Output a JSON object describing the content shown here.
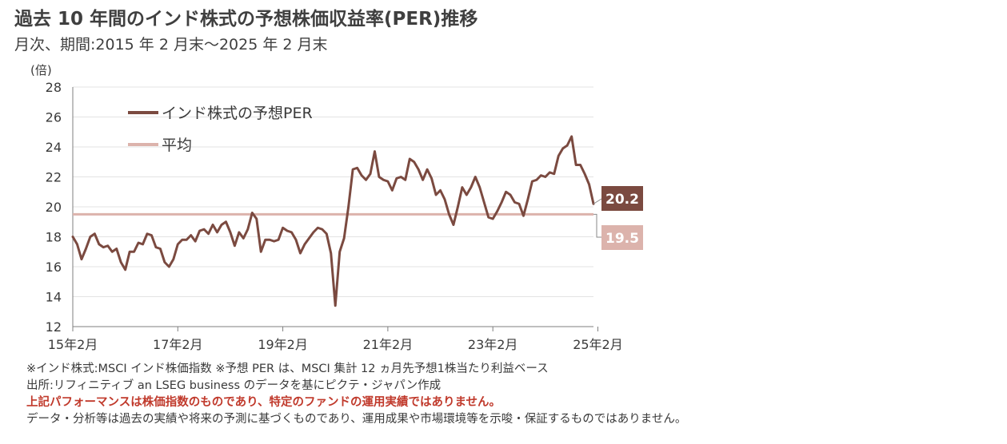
{
  "title": "過去 10 年間のインド株式の予想株価収益率(PER)推移",
  "subtitle": "月次、期間:2015 年 2 月末～2025 年 2 月末",
  "notes": [
    "※インド株式:MSCI インド株価指数 ※予想 PER は、MSCI 集計 12 ヵ月先予想1株当たり利益ベース",
    "出所:リフィニティブ an LSEG business のデータを基にピクテ・ジャパン作成",
    "上記パフォーマンスは株価指数のものであり、特定のファンドの運用実績ではありません。",
    "データ・分析等は過去の実績や将来の予測に基づくものであり、運用成果や市場環境等を示唆・保証するものではありません。"
  ],
  "chart_data": {
    "type": "line",
    "ylabel": "(倍)",
    "ylim": [
      12,
      28
    ],
    "yticks": [
      12,
      14,
      16,
      18,
      20,
      22,
      24,
      26,
      28
    ],
    "xticks": [
      "15年2月",
      "17年2月",
      "19年2月",
      "21年2月",
      "23年2月",
      "25年2月"
    ],
    "x_range": [
      "2015-02",
      "2025-02"
    ],
    "grid": true,
    "legend_placement": "top-left",
    "series": [
      {
        "name": "インド株式の予想PER",
        "color": "#7b4a40",
        "end_label": "20.2",
        "values": [
          18.0,
          17.5,
          16.5,
          17.2,
          18.0,
          18.2,
          17.5,
          17.3,
          17.4,
          17.0,
          17.2,
          16.3,
          15.8,
          17.0,
          17.0,
          17.6,
          17.5,
          18.2,
          18.1,
          17.3,
          17.2,
          16.3,
          16.0,
          16.5,
          17.5,
          17.8,
          17.8,
          18.1,
          17.7,
          18.4,
          18.5,
          18.2,
          18.8,
          18.3,
          18.8,
          19.0,
          18.3,
          17.4,
          18.3,
          17.9,
          18.5,
          19.6,
          19.2,
          17.0,
          17.8,
          17.8,
          17.7,
          17.8,
          18.6,
          18.4,
          18.3,
          17.8,
          16.9,
          17.5,
          17.9,
          18.3,
          18.6,
          18.5,
          18.2,
          16.9,
          13.4,
          17.0,
          17.9,
          20.0,
          22.5,
          22.6,
          22.1,
          21.8,
          22.2,
          23.7,
          22.0,
          21.8,
          21.7,
          21.1,
          21.9,
          22.0,
          21.8,
          23.2,
          23.0,
          22.5,
          21.8,
          22.5,
          21.9,
          20.8,
          21.1,
          20.5,
          19.5,
          18.8,
          20.0,
          21.3,
          20.8,
          21.3,
          22.0,
          21.3,
          20.3,
          19.3,
          19.2,
          19.7,
          20.3,
          21.0,
          20.8,
          20.3,
          20.2,
          19.4,
          20.5,
          21.7,
          21.8,
          22.1,
          22.0,
          22.3,
          22.2,
          23.4,
          23.9,
          24.1,
          24.7,
          22.8,
          22.8,
          22.2,
          21.5,
          20.2
        ]
      },
      {
        "name": "平均",
        "color": "#dcb3ac",
        "end_label": "19.5",
        "values": [
          19.5
        ]
      }
    ]
  }
}
